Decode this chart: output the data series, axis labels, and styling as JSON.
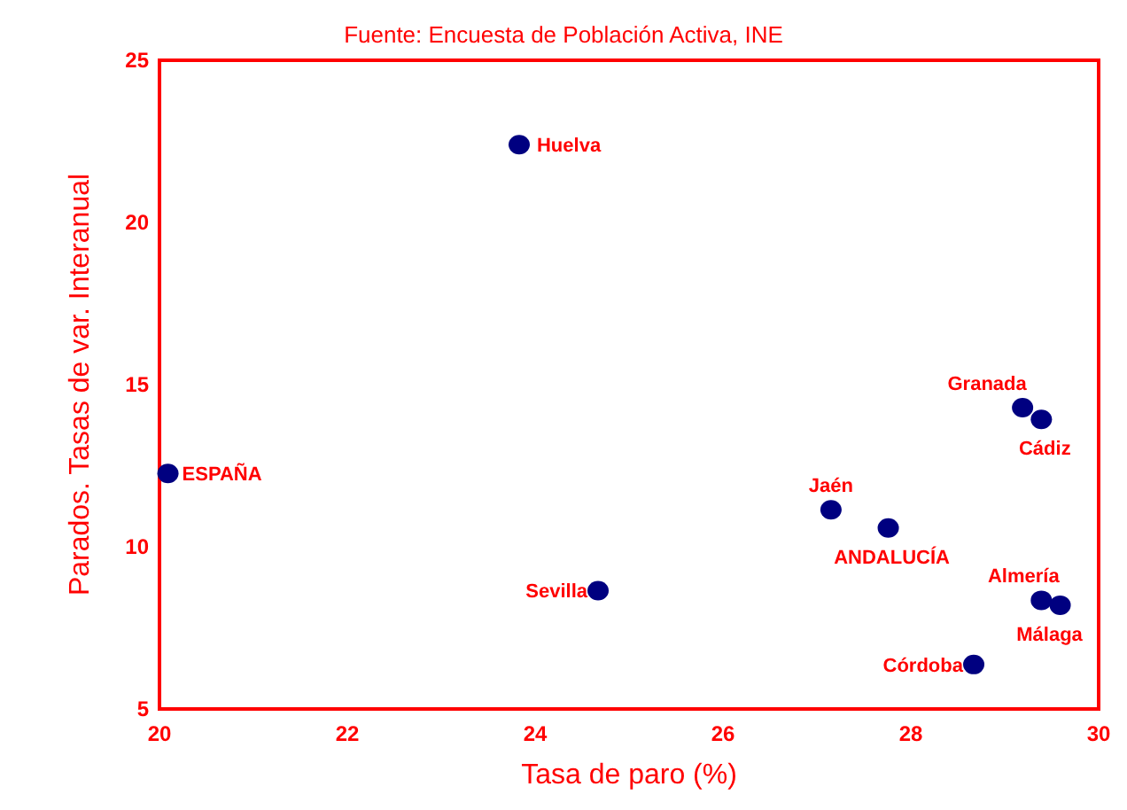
{
  "chart_data": {
    "type": "scatter",
    "xlabel": "Tasa de paro (%)",
    "ylabel": "Parados. Tasas de var. Interanual",
    "x": [
      23.83,
      20.09,
      24.67,
      27.15,
      27.76,
      29.19,
      29.39,
      29.39,
      29.59,
      28.67
    ],
    "series": [
      {
        "color": "#000080",
        "values": [
          22.4,
          12.26,
          8.65,
          11.14,
          10.58,
          14.29,
          13.93,
          8.35,
          8.2,
          6.37
        ]
      }
    ],
    "xlim": [
      20,
      30
    ],
    "xticks": [
      20,
      22,
      24,
      26,
      28,
      30
    ],
    "ylim": [
      5,
      25
    ],
    "yticks": [
      5,
      10,
      15,
      20,
      25
    ],
    "grid": false,
    "marker": "circle",
    "annotations": [
      "Fuente: Encuesta de Población Activa, INE",
      {
        "text": "Huelva",
        "x": 23.83,
        "y": 22.4
      },
      {
        "text": "ESPAÑA",
        "x": 20.09,
        "y": 12.26
      },
      {
        "text": "Sevilla",
        "x": 24.67,
        "y": 8.65
      },
      {
        "text": "Jaén",
        "x": 27.15,
        "y": 11.14
      },
      {
        "text": "ANDALUCÍA",
        "x": 27.76,
        "y": 10.58
      },
      {
        "text": "Granada",
        "x": 29.19,
        "y": 14.29
      },
      {
        "text": "Cádiz",
        "x": 29.39,
        "y": 13.93
      },
      {
        "text": "Almería",
        "x": 29.39,
        "y": 8.35
      },
      {
        "text": "Málaga",
        "x": 29.59,
        "y": 8.2
      },
      {
        "text": "Córdoba",
        "x": 28.67,
        "y": 6.37
      }
    ]
  }
}
